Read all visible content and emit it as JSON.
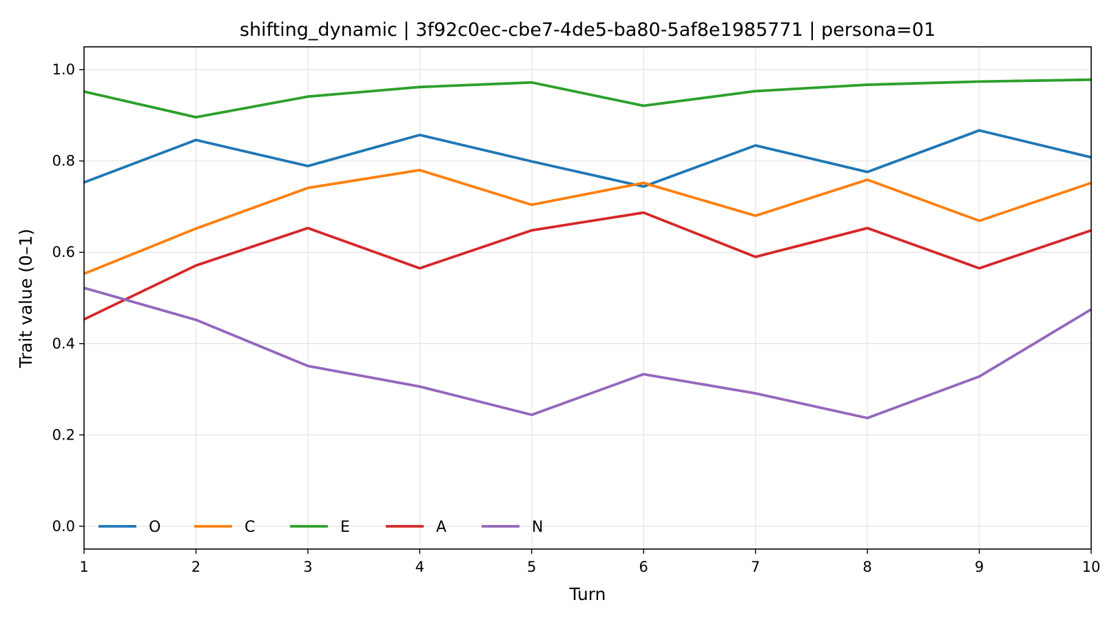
{
  "chart_data": {
    "type": "line",
    "title": "shifting_dynamic | 3f92c0ec-cbe7-4de5-ba80-5af8e1985771 | persona=01",
    "xlabel": "Turn",
    "ylabel": "Trait value (0–1)",
    "x": [
      1,
      2,
      3,
      4,
      5,
      6,
      7,
      8,
      9,
      10
    ],
    "xlim": [
      1,
      10
    ],
    "ylim": [
      -0.05,
      1.05
    ],
    "xticks": [
      "1",
      "2",
      "3",
      "4",
      "5",
      "6",
      "7",
      "8",
      "9",
      "10"
    ],
    "yticks": [
      "0.0",
      "0.2",
      "0.4",
      "0.6",
      "0.8",
      "1.0"
    ],
    "grid": true,
    "legend_position": "lower-left",
    "series": [
      {
        "name": "O",
        "color": "#1f77b4",
        "values": [
          0.753,
          0.846,
          0.789,
          0.857,
          0.799,
          0.744,
          0.834,
          0.776,
          0.867,
          0.808
        ]
      },
      {
        "name": "C",
        "color": "#ff7f0e",
        "values": [
          0.553,
          0.652,
          0.741,
          0.78,
          0.704,
          0.752,
          0.68,
          0.759,
          0.669,
          0.752
        ]
      },
      {
        "name": "E",
        "color": "#2ca02c",
        "values": [
          0.952,
          0.896,
          0.941,
          0.962,
          0.972,
          0.921,
          0.953,
          0.967,
          0.974,
          0.978
        ]
      },
      {
        "name": "A",
        "color": "#d62728",
        "values": [
          0.453,
          0.571,
          0.653,
          0.565,
          0.648,
          0.687,
          0.59,
          0.653,
          0.565,
          0.648
        ]
      },
      {
        "name": "N",
        "color": "#9467bd",
        "values": [
          0.522,
          0.452,
          0.351,
          0.306,
          0.244,
          0.333,
          0.291,
          0.237,
          0.328,
          0.475
        ]
      }
    ]
  }
}
